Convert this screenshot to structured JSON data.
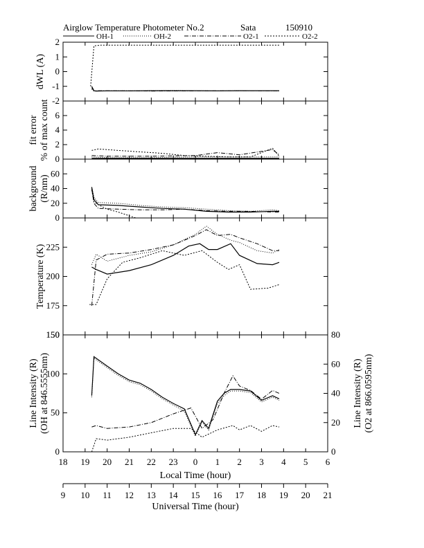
{
  "header": {
    "title": "Airglow Temperature Photometer No.2",
    "site": "Sata",
    "date": "150910"
  },
  "legend": [
    {
      "name": "OH-1",
      "dash": "none",
      "width": 1.2
    },
    {
      "name": "OH-2",
      "dash": "1 2",
      "width": 1
    },
    {
      "name": "O2-1",
      "dash": "6 2 1 2",
      "width": 1
    },
    {
      "name": "O2-2",
      "dash": "2 2",
      "width": 1
    }
  ],
  "x_axes": {
    "local_time": {
      "label": "Local Time (hour)",
      "ticks": [
        "18",
        "19",
        "20",
        "21",
        "22",
        "23",
        "0",
        "1",
        "2",
        "3",
        "4",
        "5",
        "6"
      ]
    },
    "universal_time": {
      "label": "Universal Time (hour)",
      "ticks": [
        "9",
        "10",
        "11",
        "12",
        "13",
        "14",
        "15",
        "16",
        "17",
        "18",
        "19",
        "20",
        "21"
      ]
    }
  },
  "chart_data": [
    {
      "type": "line",
      "id": "dwl",
      "ylabel": "dWL (A)",
      "ylim": [
        -2,
        2
      ],
      "yticks": [
        "-2",
        "-1",
        "0",
        "1",
        "2"
      ],
      "x_unit": "Local Time (hour, continuous: 24 = 0)",
      "xlim": [
        18,
        30
      ],
      "series": [
        {
          "name": "OH-1",
          "x": [
            19.3,
            19.4,
            19.5,
            20,
            21,
            22,
            23,
            24,
            25,
            26,
            27,
            27.8
          ],
          "y": [
            -1.0,
            -1.3,
            -1.32,
            -1.31,
            -1.31,
            -1.3,
            -1.3,
            -1.3,
            -1.31,
            -1.3,
            -1.3,
            -1.3
          ]
        },
        {
          "name": "OH-2",
          "x": [
            19.3,
            19.4,
            19.6,
            21,
            23,
            24.5,
            26,
            27.8
          ],
          "y": [
            -1.2,
            -1.33,
            -1.31,
            -1.3,
            -1.28,
            -1.3,
            -1.29,
            -1.3
          ]
        },
        {
          "name": "O2-1",
          "x": [
            19.3,
            19.4,
            20,
            22,
            24,
            26,
            27.8
          ],
          "y": [
            -1.1,
            -1.3,
            -1.3,
            -1.32,
            -1.31,
            -1.3,
            -1.31
          ]
        },
        {
          "name": "O2-2",
          "x": [
            19.25,
            19.4,
            19.7,
            22,
            25,
            27.8
          ],
          "y": [
            -1.0,
            1.75,
            1.8,
            1.8,
            1.8,
            1.8
          ]
        }
      ]
    },
    {
      "type": "line",
      "id": "fit_error",
      "ylabel": "fit error",
      "ylabel2": "% of max count",
      "ylim": [
        0,
        8
      ],
      "yticks": [
        "0",
        "2",
        "4",
        "6"
      ],
      "xlim": [
        18,
        30
      ],
      "series": [
        {
          "name": "OH-1",
          "x": [
            19.3,
            20,
            22,
            24,
            26,
            27.5,
            27.8
          ],
          "y": [
            0.1,
            0.1,
            0.1,
            0.1,
            0.1,
            0.1,
            0.1
          ]
        },
        {
          "name": "OH-2",
          "x": [
            19.3,
            20,
            22,
            24,
            26,
            27.8
          ],
          "y": [
            0.3,
            0.2,
            0.2,
            0.3,
            0.3,
            0.3
          ]
        },
        {
          "name": "O2-1",
          "x": [
            19.3,
            20,
            22,
            24,
            25,
            26,
            27.5,
            27.8
          ],
          "y": [
            0.5,
            0.4,
            0.4,
            0.5,
            0.9,
            0.6,
            1.3,
            0.6
          ]
        },
        {
          "name": "O2-2",
          "x": [
            19.3,
            19.6,
            20.5,
            21.5,
            22.5,
            23.5,
            24.5,
            25.5,
            26.5,
            27.5,
            27.8
          ],
          "y": [
            1.2,
            1.4,
            1.2,
            1.0,
            0.8,
            0.5,
            0.4,
            0.3,
            0.3,
            1.5,
            0.4
          ]
        }
      ]
    },
    {
      "type": "line",
      "id": "background",
      "ylabel": "background",
      "ylabel2": "(R/nm)",
      "ylim": [
        0,
        80
      ],
      "yticks": [
        "0",
        "20",
        "40",
        "60"
      ],
      "xlim": [
        18,
        30
      ],
      "series": [
        {
          "name": "OH-1",
          "x": [
            19.3,
            19.4,
            19.6,
            20.5,
            21.5,
            22.5,
            23.5,
            24.5,
            25.5,
            26.5,
            27.5,
            27.8
          ],
          "y": [
            42,
            25,
            18,
            17,
            15,
            13,
            12,
            9,
            8,
            8,
            9,
            9
          ]
        },
        {
          "name": "OH-2",
          "x": [
            19.3,
            19.4,
            19.6,
            20.5,
            21.5,
            22.5,
            23.5,
            24.5,
            25.5,
            26.5,
            27.5,
            27.8
          ],
          "y": [
            42,
            28,
            21,
            20,
            17,
            15,
            14,
            12,
            10,
            9,
            11,
            10
          ]
        },
        {
          "name": "O2-1",
          "x": [
            19.3,
            19.4,
            19.6,
            20.5,
            21.5,
            22.5,
            23.5,
            24.5,
            25.5,
            26.5,
            27.5,
            27.8
          ],
          "y": [
            40,
            20,
            13,
            12,
            11,
            11,
            12,
            10,
            9,
            9,
            8,
            8
          ]
        },
        {
          "name": "O2-2",
          "x": [
            19.3,
            19.4,
            19.6,
            20.0,
            20.5,
            21.0,
            21.3
          ],
          "y": [
            38,
            22,
            18,
            12,
            8,
            3,
            0
          ]
        }
      ]
    },
    {
      "type": "line",
      "id": "temperature",
      "ylabel": "Temperature (K)",
      "ylim": [
        150,
        250
      ],
      "yticks": [
        "175",
        "200",
        "225"
      ],
      "xlim": [
        18,
        30
      ],
      "series": [
        {
          "name": "OH-1",
          "x": [
            19.3,
            19.5,
            20,
            21,
            22,
            23,
            23.7,
            24.2,
            24.6,
            25,
            25.6,
            26,
            26.8,
            27.5,
            27.8
          ],
          "y": [
            208,
            206,
            202,
            205,
            210,
            218,
            226,
            228,
            223,
            223,
            228,
            218,
            211,
            210,
            212
          ]
        },
        {
          "name": "OH-2",
          "x": [
            19.3,
            19.5,
            20,
            21,
            22,
            23,
            24,
            24.5,
            25,
            25.6,
            26,
            26.8,
            27.5,
            27.8
          ],
          "y": [
            210,
            219,
            213,
            218,
            221,
            227,
            236,
            243,
            236,
            231,
            229,
            222,
            220,
            223
          ]
        },
        {
          "name": "O2-1",
          "x": [
            19.3,
            19.5,
            20,
            21,
            22,
            23,
            24,
            24.5,
            25,
            25.6,
            26,
            26.8,
            27.5,
            27.8
          ],
          "y": [
            175,
            214,
            219,
            220,
            223,
            227,
            235,
            240,
            235,
            236,
            233,
            228,
            222,
            222
          ]
        },
        {
          "name": "O2-2",
          "x": [
            19.2,
            19.5,
            20,
            20.7,
            21.5,
            22.5,
            23.5,
            24.3,
            25,
            25.5,
            26,
            26.5,
            27.3,
            27.8
          ],
          "y": [
            176,
            176,
            198,
            212,
            216,
            222,
            218,
            222,
            212,
            206,
            210,
            189,
            190,
            193
          ]
        }
      ]
    },
    {
      "type": "line",
      "id": "line_intensity",
      "ylabel": "Line Intensity (R)",
      "ylabel2": "(OH at 846.5555nm)",
      "y2label": "Line Intensity (R)",
      "y2label2": "(O2 at 866.0595nm)",
      "ylim": [
        0,
        150
      ],
      "yticks": [
        "0",
        "50",
        "100",
        "150"
      ],
      "y2lim": [
        0,
        80
      ],
      "y2ticks": [
        "0",
        "20",
        "40",
        "60",
        "80"
      ],
      "xlim": [
        18,
        30
      ],
      "series": [
        {
          "name": "OH-1",
          "axis": "left",
          "x": [
            19.3,
            19.4,
            20,
            20.5,
            21,
            21.5,
            22,
            22.5,
            23,
            23.5,
            24.0,
            24.3,
            24.6,
            25,
            25.3,
            25.6,
            26,
            26.5,
            27,
            27.5,
            27.8
          ],
          "y": [
            72,
            122,
            110,
            100,
            92,
            88,
            80,
            70,
            62,
            55,
            22,
            40,
            30,
            65,
            75,
            80,
            80,
            78,
            66,
            72,
            68
          ]
        },
        {
          "name": "OH-2",
          "axis": "left",
          "x": [
            19.3,
            19.4,
            20,
            20.5,
            21,
            21.5,
            22,
            22.5,
            23,
            23.5,
            24.0,
            24.3,
            24.6,
            25,
            25.3,
            25.6,
            26,
            26.5,
            27,
            27.5,
            27.8
          ],
          "y": [
            70,
            120,
            108,
            98,
            90,
            86,
            78,
            68,
            60,
            52,
            20,
            38,
            28,
            62,
            72,
            78,
            78,
            76,
            64,
            70,
            66
          ]
        },
        {
          "name": "O2-1",
          "axis": "right",
          "x": [
            19.3,
            19.5,
            20,
            21,
            22,
            23,
            23.8,
            24.3,
            24.8,
            25.3,
            25.7,
            26,
            26.5,
            27,
            27.5,
            27.8
          ],
          "y": [
            17,
            18,
            16,
            17,
            20,
            26,
            30,
            16,
            22,
            40,
            52,
            45,
            42,
            36,
            42,
            40
          ]
        },
        {
          "name": "O2-2",
          "axis": "right",
          "x": [
            19.3,
            19.5,
            20,
            21,
            22,
            23,
            23.8,
            24.3,
            25,
            25.7,
            26,
            26.5,
            27,
            27.5,
            27.8
          ],
          "y": [
            0,
            9,
            8,
            10,
            13,
            16,
            16,
            10,
            15,
            18,
            15,
            18,
            14,
            18,
            17
          ]
        }
      ]
    }
  ]
}
